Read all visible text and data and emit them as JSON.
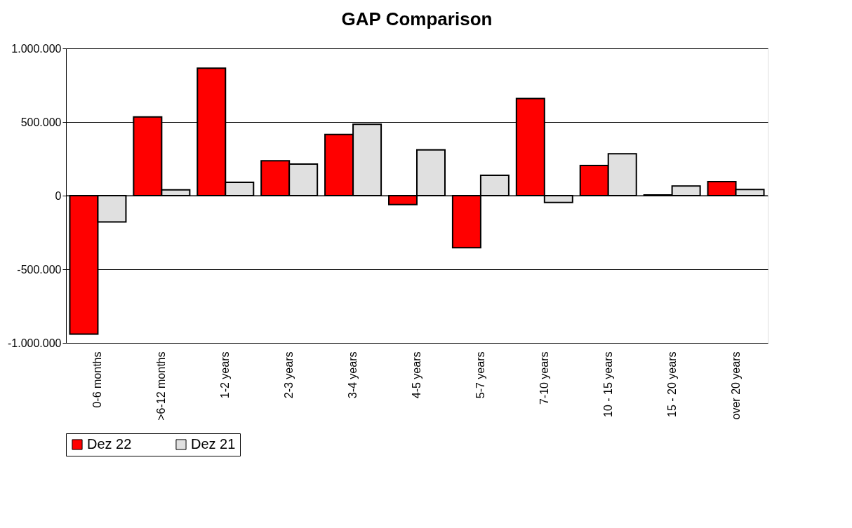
{
  "chart_data": {
    "type": "bar",
    "title": "GAP Comparison",
    "categories": [
      "0-6 months",
      ">6-12 months",
      "1-2 years",
      "2-3 years",
      "3-4 years",
      "4-5 years",
      "5-7 years",
      "7-10 years",
      "10 - 15 years",
      "15 - 20 years",
      "over 20 years"
    ],
    "series": [
      {
        "name": "Dez 22",
        "color": "#ff0000",
        "values": [
          -940000,
          534000,
          866000,
          237000,
          415000,
          -61000,
          -354000,
          659000,
          205000,
          5000,
          95000
        ]
      },
      {
        "name": "Dez 21",
        "color": "#e0e0e0",
        "values": [
          -179000,
          39000,
          91000,
          214000,
          485000,
          311000,
          138000,
          -46000,
          284000,
          66000,
          42000
        ]
      }
    ],
    "ylim": [
      -1000000,
      1000000
    ],
    "yticks": [
      {
        "value": -1000000,
        "label": "-1.000.000"
      },
      {
        "value": -500000,
        "label": "-500.000"
      },
      {
        "value": 0,
        "label": "0"
      },
      {
        "value": 500000,
        "label": "500.000"
      },
      {
        "value": 1000000,
        "label": "1.000.000"
      }
    ],
    "grid": "y",
    "legend": "bottom"
  }
}
